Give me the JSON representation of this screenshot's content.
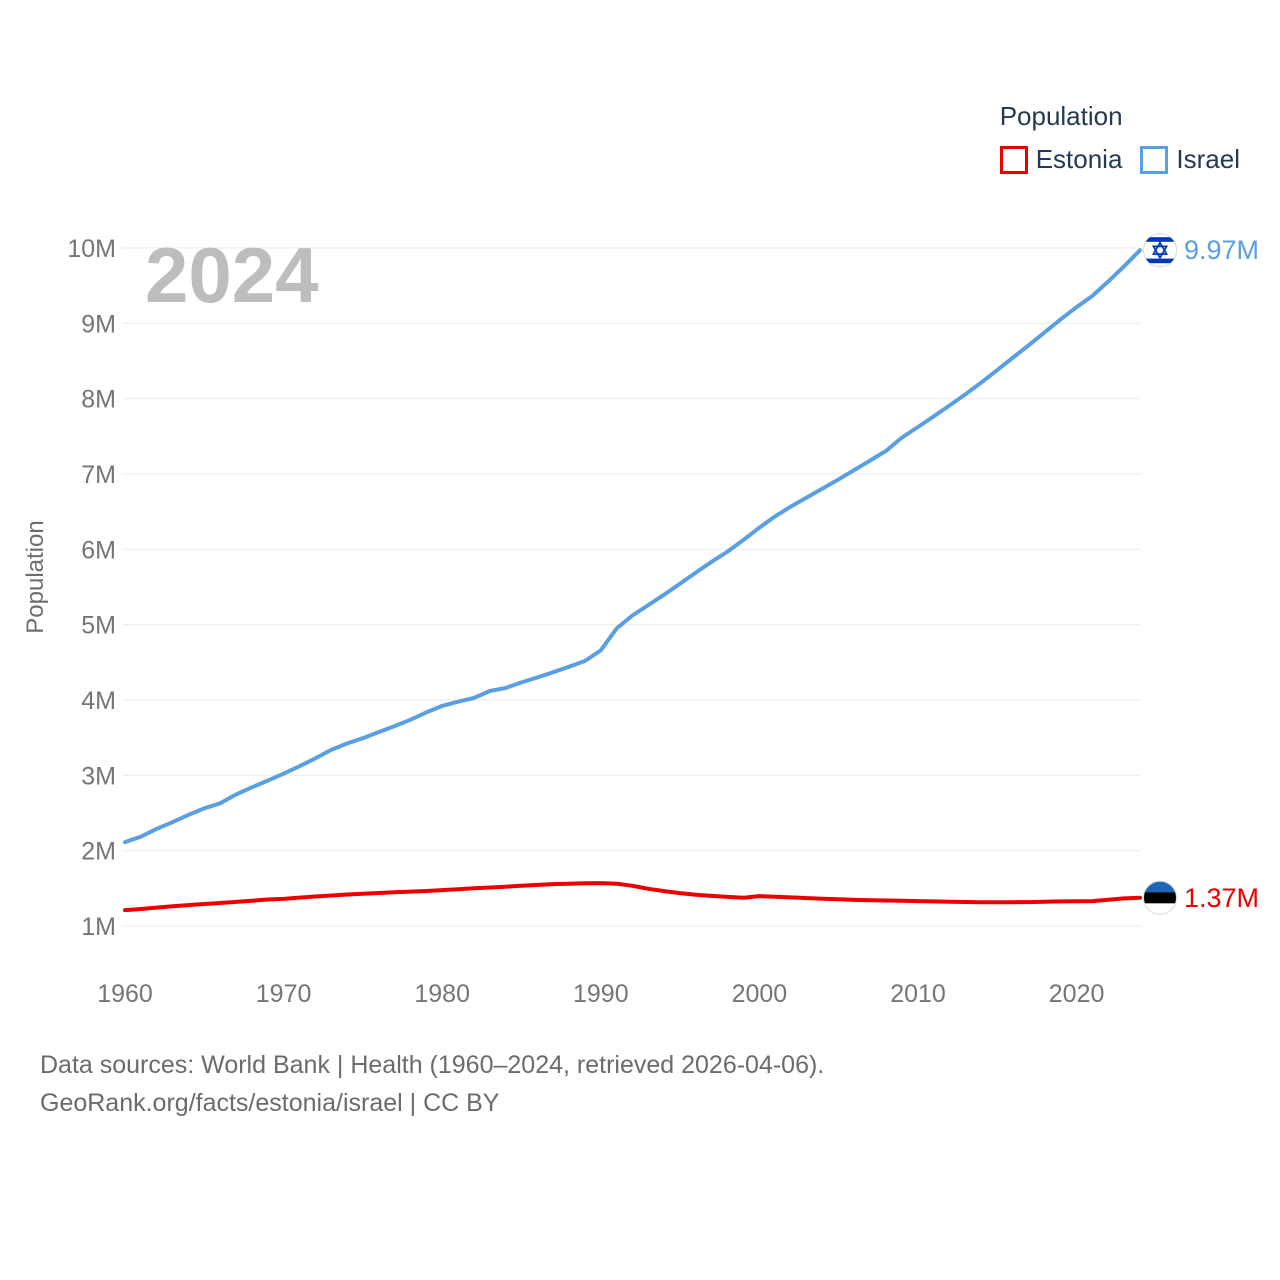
{
  "legend": {
    "title": "Population",
    "items": [
      {
        "label": "Estonia",
        "color": "#ee0000"
      },
      {
        "label": "Israel",
        "color": "#5b9fe3"
      }
    ]
  },
  "watermark": "2024",
  "y_axis": {
    "title": "Population",
    "ticks": [
      {
        "value": 1,
        "label": "1M"
      },
      {
        "value": 2,
        "label": "2M"
      },
      {
        "value": 3,
        "label": "3M"
      },
      {
        "value": 4,
        "label": "4M"
      },
      {
        "value": 5,
        "label": "5M"
      },
      {
        "value": 6,
        "label": "6M"
      },
      {
        "value": 7,
        "label": "7M"
      },
      {
        "value": 8,
        "label": "8M"
      },
      {
        "value": 9,
        "label": "9M"
      },
      {
        "value": 10,
        "label": "10M"
      }
    ]
  },
  "x_axis": {
    "ticks": [
      1960,
      1970,
      1980,
      1990,
      2000,
      2010,
      2020
    ]
  },
  "end_labels": {
    "israel": "9.97M",
    "estonia": "1.37M"
  },
  "footer": {
    "line1": "Data sources: World Bank | Health (1960–2024, retrieved 2026-04-06).",
    "line2": "GeoRank.org/facts/estonia/israel | CC BY"
  },
  "colors": {
    "estonia_line": "#ee0000",
    "israel_line": "#5b9fe3",
    "legend_text": "#253a52",
    "tick_text": "#757575",
    "watermark": "#bdbdbd",
    "gridline": "#ebebeb",
    "israel_flag_blue": "#0038b8",
    "estonia_flag_blue": "#1b64b8"
  },
  "chart_data": {
    "type": "line",
    "title": "Population",
    "ylabel": "Population",
    "units": "millions",
    "ylim": [
      1,
      10
    ],
    "xlim": [
      1960,
      2024
    ],
    "grid": "horizontal",
    "legend_position": "top-right",
    "year_watermark": "2024",
    "x": [
      1960,
      1961,
      1962,
      1963,
      1964,
      1965,
      1966,
      1967,
      1968,
      1969,
      1970,
      1971,
      1972,
      1973,
      1974,
      1975,
      1976,
      1977,
      1978,
      1979,
      1980,
      1981,
      1982,
      1983,
      1984,
      1985,
      1986,
      1987,
      1988,
      1989,
      1990,
      1991,
      1992,
      1993,
      1994,
      1995,
      1996,
      1997,
      1998,
      1999,
      2000,
      2001,
      2002,
      2003,
      2004,
      2005,
      2006,
      2007,
      2008,
      2009,
      2010,
      2011,
      2012,
      2013,
      2014,
      2015,
      2016,
      2017,
      2018,
      2019,
      2020,
      2021,
      2022,
      2023,
      2024
    ],
    "series": [
      {
        "name": "Estonia",
        "color": "#ee0000",
        "end_label": "1.37M",
        "values": [
          1.211,
          1.226,
          1.244,
          1.261,
          1.277,
          1.292,
          1.305,
          1.32,
          1.336,
          1.352,
          1.36,
          1.377,
          1.392,
          1.405,
          1.418,
          1.429,
          1.438,
          1.447,
          1.456,
          1.465,
          1.477,
          1.488,
          1.501,
          1.511,
          1.522,
          1.535,
          1.546,
          1.556,
          1.562,
          1.568,
          1.569,
          1.561,
          1.533,
          1.494,
          1.463,
          1.437,
          1.416,
          1.4,
          1.386,
          1.376,
          1.397,
          1.388,
          1.379,
          1.371,
          1.362,
          1.355,
          1.347,
          1.341,
          1.338,
          1.336,
          1.331,
          1.327,
          1.323,
          1.318,
          1.314,
          1.315,
          1.316,
          1.317,
          1.322,
          1.327,
          1.329,
          1.331,
          1.349,
          1.366,
          1.374
        ]
      },
      {
        "name": "Israel",
        "color": "#5b9fe3",
        "end_label": "9.97M",
        "values": [
          2.114,
          2.185,
          2.29,
          2.379,
          2.475,
          2.563,
          2.629,
          2.745,
          2.841,
          2.93,
          3.022,
          3.121,
          3.225,
          3.338,
          3.422,
          3.493,
          3.575,
          3.653,
          3.738,
          3.836,
          3.922,
          3.978,
          4.027,
          4.119,
          4.159,
          4.233,
          4.299,
          4.369,
          4.442,
          4.518,
          4.66,
          4.949,
          5.123,
          5.261,
          5.399,
          5.545,
          5.692,
          5.836,
          5.971,
          6.125,
          6.289,
          6.439,
          6.57,
          6.69,
          6.809,
          6.93,
          7.054,
          7.18,
          7.309,
          7.486,
          7.624,
          7.766,
          7.911,
          8.059,
          8.216,
          8.38,
          8.546,
          8.713,
          8.882,
          9.054,
          9.216,
          9.364,
          9.557,
          9.757,
          9.971
        ]
      }
    ]
  }
}
